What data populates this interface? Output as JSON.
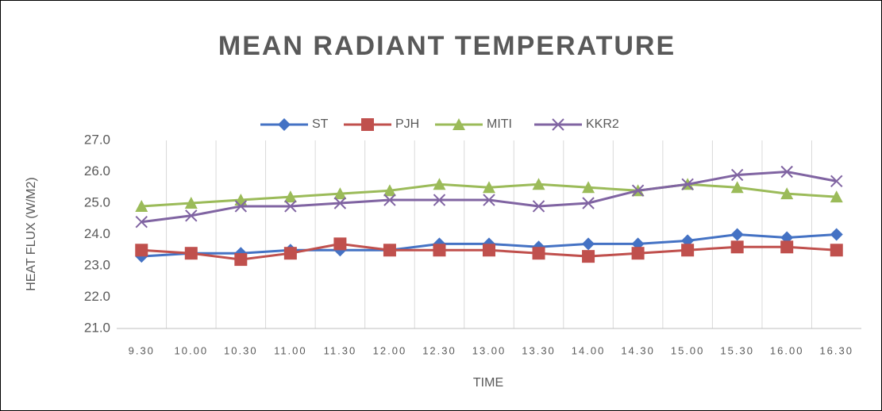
{
  "chart_data": {
    "type": "line",
    "title": "MEAN RADIANT TEMPERATURE",
    "x_label": "TIME",
    "y_label": "HEAT FLUX (W/M2)",
    "categories": [
      "9.30",
      "10.00",
      "10.30",
      "11.00",
      "11.30",
      "12.00",
      "12.30",
      "13.00",
      "13.30",
      "14.00",
      "14.30",
      "15.00",
      "15.30",
      "16.00",
      "16.30"
    ],
    "series": [
      {
        "name": "ST",
        "color": "#4472c4",
        "marker": "diamond",
        "values": [
          23.3,
          23.4,
          23.4,
          23.5,
          23.5,
          23.5,
          23.7,
          23.7,
          23.6,
          23.7,
          23.7,
          23.8,
          24.0,
          23.9,
          24.0
        ]
      },
      {
        "name": "PJH",
        "color": "#c0504d",
        "marker": "square",
        "values": [
          23.5,
          23.4,
          23.2,
          23.4,
          23.7,
          23.5,
          23.5,
          23.5,
          23.4,
          23.3,
          23.4,
          23.5,
          23.6,
          23.6,
          23.5
        ]
      },
      {
        "name": "MITI",
        "color": "#9bbb59",
        "marker": "triangle",
        "values": [
          24.9,
          25.0,
          25.1,
          25.2,
          25.3,
          25.4,
          25.6,
          25.5,
          25.6,
          25.5,
          25.4,
          25.6,
          25.5,
          25.3,
          25.2
        ]
      },
      {
        "name": "KKR2",
        "color": "#8064a2",
        "marker": "x",
        "values": [
          24.4,
          24.6,
          24.9,
          24.9,
          25.0,
          25.1,
          25.1,
          25.1,
          24.9,
          25.0,
          25.4,
          25.6,
          25.9,
          26.0,
          25.7
        ]
      }
    ],
    "ylim": [
      21,
      27
    ],
    "yticks": [
      {
        "value": 21,
        "label": "21.0"
      },
      {
        "value": 22,
        "label": "22.0"
      },
      {
        "value": 23,
        "label": "23.0"
      },
      {
        "value": 24,
        "label": "24.0"
      },
      {
        "value": 25,
        "label": "25.0"
      },
      {
        "value": 26,
        "label": "26.0"
      },
      {
        "value": 27,
        "label": "27.0"
      }
    ],
    "grid": "vertical",
    "legend": "top"
  }
}
